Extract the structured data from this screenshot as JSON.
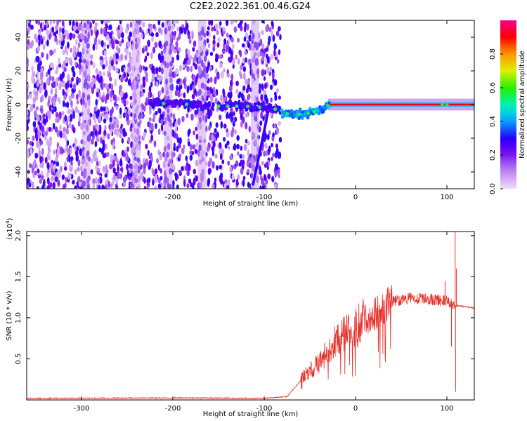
{
  "title": "C2E2.2022.361.00.46.G24",
  "chart_data": [
    {
      "type": "heatmap",
      "xlabel": "Height of straight line (km)",
      "ylabel": "Frequency (Hz)",
      "xlim": [
        -360,
        130
      ],
      "ylim": [
        -50,
        50
      ],
      "xticks": [
        -300,
        -200,
        -100,
        0,
        100
      ],
      "yticks": [
        -40,
        -20,
        0,
        20,
        40
      ],
      "colorbar": {
        "label": "Normalized spectral amplitude",
        "range": [
          0,
          1
        ],
        "ticks": [
          0.0,
          0.2,
          0.4,
          0.6,
          0.8
        ]
      },
      "noise_region_x": [
        -360,
        -82
      ],
      "signal_track": [
        {
          "x": -225,
          "y": 1
        },
        {
          "x": -180,
          "y": 0
        },
        {
          "x": -150,
          "y": -1
        },
        {
          "x": -120,
          "y": -1
        },
        {
          "x": -95,
          "y": -2
        },
        {
          "x": -85,
          "y": -3
        },
        {
          "x": -80,
          "y": -5
        },
        {
          "x": -65,
          "y": -6
        },
        {
          "x": -50,
          "y": -5
        },
        {
          "x": -35,
          "y": -3
        },
        {
          "x": -28,
          "y": 0
        },
        {
          "x": 0,
          "y": 0
        },
        {
          "x": 100,
          "y": 0
        },
        {
          "x": 130,
          "y": 0
        }
      ],
      "streak": {
        "x": [
          -112,
          -96
        ],
        "y": [
          -47,
          -5
        ]
      }
    },
    {
      "type": "line",
      "xlabel": "Height of straight line (km)",
      "ylabel": "SNR (10 * v/v)",
      "y_multiplier": "(x10",
      "y_multiplier_exp": "4",
      "y_multiplier_close": ")",
      "xlim": [
        -360,
        130
      ],
      "ylim": [
        0.0,
        2.05
      ],
      "xticks": [
        -300,
        -200,
        -100,
        0,
        100
      ],
      "yticks": [
        0.5,
        1.0,
        1.5,
        2.0
      ],
      "ytick_labels": [
        "0.5",
        "1.0",
        "1.5",
        "2.0"
      ],
      "series": [
        {
          "color": "#e8302a",
          "profile": [
            {
              "x": -360,
              "y": 0.02
            },
            {
              "x": -200,
              "y": 0.025
            },
            {
              "x": -100,
              "y": 0.02
            },
            {
              "x": -75,
              "y": 0.04
            },
            {
              "x": -55,
              "y": 0.3
            },
            {
              "x": -40,
              "y": 0.45
            },
            {
              "x": -20,
              "y": 0.75
            },
            {
              "x": 0,
              "y": 0.9
            },
            {
              "x": 20,
              "y": 1.05
            },
            {
              "x": 40,
              "y": 1.2
            },
            {
              "x": 60,
              "y": 1.24
            },
            {
              "x": 80,
              "y": 1.23
            },
            {
              "x": 100,
              "y": 1.2
            },
            {
              "x": 108,
              "y": 1.15
            },
            {
              "x": 130,
              "y": 1.12
            }
          ],
          "spikes": [
            {
              "x": 98,
              "y": 1.45
            },
            {
              "x": 105,
              "y": 0.65
            },
            {
              "x": 109,
              "y": 2.05
            },
            {
              "x": 109.5,
              "y": 0.1
            },
            {
              "x": 110.5,
              "y": 1.6
            }
          ]
        }
      ]
    }
  ]
}
